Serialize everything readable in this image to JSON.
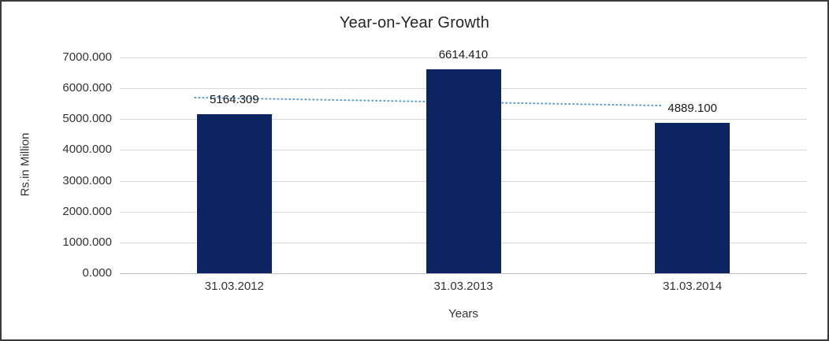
{
  "chart_data": {
    "type": "bar",
    "title": "Year-on-Year Growth",
    "xlabel": "Years",
    "ylabel": "Rs.in Million",
    "categories": [
      "31.03.2012",
      "31.03.2013",
      "31.03.2014"
    ],
    "values": [
      5164.309,
      6614.41,
      4889.1
    ],
    "data_labels": [
      "5164.309",
      "6614.410",
      "4889.100"
    ],
    "ylim": [
      0,
      7000
    ],
    "ytick_step": 1000,
    "ytick_labels": [
      "0.000",
      "1000.000",
      "2000.000",
      "3000.000",
      "4000.000",
      "5000.000",
      "6000.000",
      "7000.000"
    ],
    "grid": true,
    "legend": "none",
    "bar_color": "#0c2461",
    "trendline": {
      "type": "linear",
      "style": "dotted",
      "color": "#5b9bd5",
      "start_value": 5700,
      "end_value": 5440
    }
  }
}
